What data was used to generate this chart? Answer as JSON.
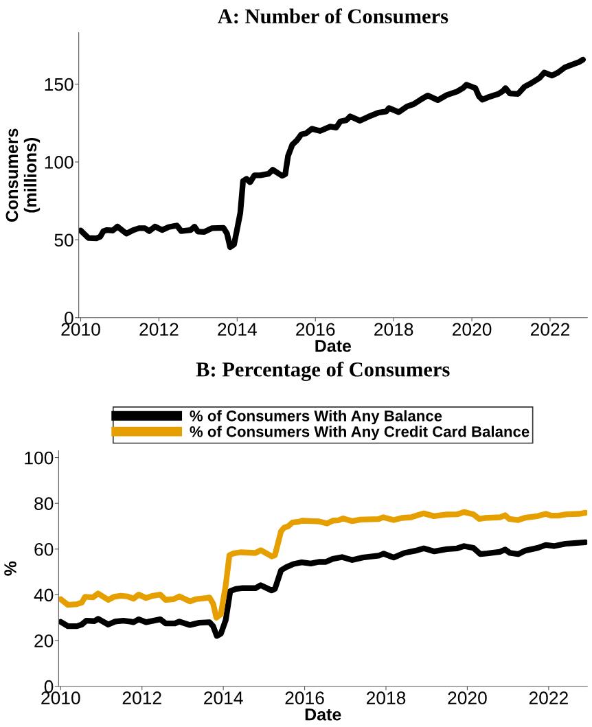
{
  "chart_data": [
    {
      "type": "line",
      "title": "A: Number of Consumers",
      "xlabel": "Date",
      "ylabel": "Consumers\n(millions)",
      "xlim": [
        2009.95,
        2022.95
      ],
      "xticks": [
        2010,
        2012,
        2014,
        2016,
        2018,
        2020,
        2022
      ],
      "ylim": [
        0,
        183
      ],
      "yticks": [
        0,
        50,
        100,
        150
      ],
      "legend": false,
      "series": [
        {
          "color": "#000000",
          "x": [
            2010.0,
            2010.2,
            2010.4,
            2010.5,
            2010.58,
            2010.67,
            2010.82,
            2010.94,
            2011.05,
            2011.17,
            2011.35,
            2011.49,
            2011.64,
            2011.75,
            2011.9,
            2012.08,
            2012.25,
            2012.46,
            2012.57,
            2012.81,
            2012.91,
            2013.0,
            2013.16,
            2013.36,
            2013.65,
            2013.74,
            2013.82,
            2013.92,
            2014.0,
            2014.08,
            2014.15,
            2014.24,
            2014.33,
            2014.44,
            2014.59,
            2014.8,
            2014.91,
            2015.15,
            2015.23,
            2015.3,
            2015.41,
            2015.53,
            2015.64,
            2015.76,
            2015.91,
            2016.12,
            2016.38,
            2016.53,
            2016.64,
            2016.79,
            2016.89,
            2017.14,
            2017.35,
            2017.61,
            2017.81,
            2017.88,
            2018.13,
            2018.34,
            2018.51,
            2018.69,
            2018.87,
            2019.13,
            2019.36,
            2019.62,
            2019.77,
            2019.86,
            2020.09,
            2020.18,
            2020.27,
            2020.41,
            2020.68,
            2020.79,
            2020.86,
            2020.97,
            2021.18,
            2021.35,
            2021.5,
            2021.73,
            2021.85,
            2022.05,
            2022.2,
            2022.37,
            2022.55,
            2022.75,
            2022.84
          ],
          "values": [
            56,
            51.2,
            51,
            52,
            55.6,
            56.3,
            56,
            58.5,
            56.3,
            54,
            56.3,
            57.5,
            57.5,
            55.6,
            58.5,
            56.3,
            58.2,
            59.2,
            55.6,
            56.3,
            58.5,
            55.3,
            55.1,
            57.5,
            57.7,
            54,
            45.3,
            47,
            57,
            67.3,
            87.7,
            89.2,
            87,
            91.4,
            91.4,
            92.4,
            95,
            91.1,
            92.1,
            103.8,
            111.1,
            114,
            117.7,
            118.4,
            121.3,
            119.9,
            122.7,
            122.1,
            126.1,
            126.8,
            129.3,
            126.5,
            129,
            131.7,
            132.4,
            134.6,
            132,
            135.6,
            137.1,
            140,
            142.7,
            139.7,
            143,
            145.2,
            147.4,
            149.6,
            147.4,
            142.2,
            140,
            141.5,
            143.7,
            145.5,
            147.4,
            144,
            143.7,
            148.4,
            150.3,
            154,
            157.4,
            155.5,
            157.4,
            160.6,
            162.4,
            164.3,
            165.7
          ]
        }
      ]
    },
    {
      "type": "line",
      "title": "B: Percentage of Consumers",
      "xlabel": "Date",
      "ylabel": "%",
      "xlim": [
        2009.95,
        2022.95
      ],
      "xticks": [
        2010,
        2012,
        2014,
        2016,
        2018,
        2020,
        2022
      ],
      "ylim": [
        0,
        103
      ],
      "yticks": [
        0,
        20,
        40,
        60,
        80,
        100
      ],
      "legend": "top",
      "series": [
        {
          "name": "% of Consumers With Any Balance",
          "color": "#000000",
          "x": [
            2010.0,
            2010.18,
            2010.4,
            2010.52,
            2010.63,
            2010.83,
            2010.92,
            2011.17,
            2011.34,
            2011.54,
            2011.71,
            2011.79,
            2011.92,
            2012.1,
            2012.45,
            2012.58,
            2012.81,
            2012.92,
            2013.18,
            2013.41,
            2013.66,
            2013.75,
            2013.84,
            2013.94,
            2014.06,
            2014.17,
            2014.31,
            2014.45,
            2014.79,
            2014.92,
            2015.19,
            2015.27,
            2015.42,
            2015.56,
            2015.73,
            2015.93,
            2016.15,
            2016.35,
            2016.52,
            2016.69,
            2016.92,
            2017.17,
            2017.43,
            2017.82,
            2017.94,
            2018.19,
            2018.45,
            2018.73,
            2018.93,
            2019.19,
            2019.5,
            2019.75,
            2019.92,
            2020.15,
            2020.32,
            2020.49,
            2020.8,
            2020.93,
            2021.05,
            2021.25,
            2021.42,
            2021.73,
            2021.93,
            2022.13,
            2022.41,
            2022.91
          ],
          "values": [
            28.2,
            26.3,
            26.3,
            27,
            28.7,
            28.5,
            29.5,
            27,
            28.3,
            28.7,
            28.3,
            28,
            29.3,
            28,
            29.3,
            27.5,
            27.5,
            28.3,
            26.8,
            27.8,
            28,
            26.3,
            22,
            23,
            29,
            41.6,
            42.6,
            42.9,
            42.9,
            44.2,
            41.9,
            42.6,
            50.7,
            52.2,
            53.5,
            54.2,
            53.7,
            54.4,
            54.4,
            55.7,
            56.5,
            55.2,
            56.3,
            57.1,
            58,
            56.3,
            58.3,
            59.3,
            60.3,
            59,
            60,
            60.3,
            61.3,
            60.5,
            57.8,
            58.1,
            58.8,
            59.8,
            58.3,
            57.8,
            59.3,
            60.5,
            61.8,
            61.3,
            62.3,
            63
          ]
        },
        {
          "name": "% of Consumers With Any Credit Card Balance",
          "color": "#e69f00",
          "x": [
            2010.0,
            2010.18,
            2010.4,
            2010.52,
            2010.6,
            2010.8,
            2010.92,
            2011.17,
            2011.31,
            2011.48,
            2011.65,
            2011.79,
            2011.92,
            2012.1,
            2012.27,
            2012.45,
            2012.58,
            2012.78,
            2012.92,
            2013.18,
            2013.32,
            2013.58,
            2013.66,
            2013.75,
            2013.83,
            2013.94,
            2014.06,
            2014.15,
            2014.25,
            2014.42,
            2014.79,
            2014.92,
            2015.19,
            2015.27,
            2015.42,
            2015.5,
            2015.59,
            2015.7,
            2015.84,
            2015.94,
            2016.18,
            2016.35,
            2016.55,
            2016.69,
            2016.83,
            2016.95,
            2017.17,
            2017.37,
            2017.82,
            2017.93,
            2018.19,
            2018.39,
            2018.62,
            2018.79,
            2018.93,
            2019.18,
            2019.47,
            2019.75,
            2019.92,
            2020.15,
            2020.29,
            2020.43,
            2020.8,
            2020.93,
            2021.03,
            2021.25,
            2021.42,
            2021.73,
            2021.93,
            2022.07,
            2022.24,
            2022.44,
            2022.75,
            2022.91
          ],
          "values": [
            38.1,
            35.6,
            35.9,
            36.6,
            39.1,
            38.9,
            40.6,
            37.8,
            39.1,
            39.6,
            39.3,
            38.3,
            40.1,
            38.6,
            39.6,
            40.1,
            37.8,
            38.1,
            39.3,
            37.1,
            38.1,
            38.6,
            38.8,
            36.1,
            30,
            31.5,
            44.2,
            57.3,
            58.1,
            58.6,
            58.3,
            59.5,
            56.8,
            57.3,
            67.8,
            69.4,
            69.9,
            71.6,
            71.9,
            72.4,
            72.2,
            72.1,
            71.2,
            72.4,
            72.6,
            73.4,
            72.2,
            72.9,
            73.1,
            73.9,
            72.7,
            73.6,
            73.9,
            74.9,
            75.6,
            74.4,
            75.1,
            75.2,
            76.2,
            75.2,
            73.2,
            73.6,
            73.9,
            74.8,
            73.2,
            72.7,
            73.7,
            74.4,
            75.4,
            74.6,
            74.6,
            75.2,
            75.4,
            75.9
          ]
        }
      ]
    }
  ]
}
